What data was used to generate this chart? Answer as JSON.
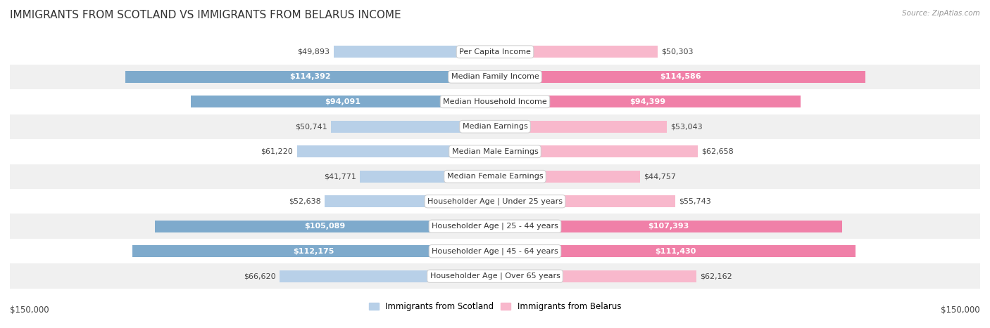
{
  "title": "IMMIGRANTS FROM SCOTLAND VS IMMIGRANTS FROM BELARUS INCOME",
  "source": "Source: ZipAtlas.com",
  "categories": [
    "Per Capita Income",
    "Median Family Income",
    "Median Household Income",
    "Median Earnings",
    "Median Male Earnings",
    "Median Female Earnings",
    "Householder Age | Under 25 years",
    "Householder Age | 25 - 44 years",
    "Householder Age | 45 - 64 years",
    "Householder Age | Over 65 years"
  ],
  "scotland_values": [
    49893,
    114392,
    94091,
    50741,
    61220,
    41771,
    52638,
    105089,
    112175,
    66620
  ],
  "belarus_values": [
    50303,
    114586,
    94399,
    53043,
    62658,
    44757,
    55743,
    107393,
    111430,
    62162
  ],
  "scotland_labels": [
    "$49,893",
    "$114,392",
    "$94,091",
    "$50,741",
    "$61,220",
    "$41,771",
    "$52,638",
    "$105,089",
    "$112,175",
    "$66,620"
  ],
  "belarus_labels": [
    "$50,303",
    "$114,586",
    "$94,399",
    "$53,043",
    "$62,658",
    "$44,757",
    "$55,743",
    "$107,393",
    "$111,430",
    "$62,162"
  ],
  "scotland_color": "#7eaacc",
  "belarus_color": "#f080a8",
  "scotland_color_light": "#b8d0e8",
  "belarus_color_light": "#f8b8cc",
  "label_threshold": 80000,
  "max_value": 150000,
  "bar_height": 0.48,
  "background_color": "#ffffff",
  "row_bg_even": "#f0f0f0",
  "row_bg_odd": "#ffffff",
  "legend_scotland": "Immigrants from Scotland",
  "legend_belarus": "Immigrants from Belarus",
  "xlabel_left": "$150,000",
  "xlabel_right": "$150,000",
  "title_fontsize": 11,
  "label_fontsize": 8,
  "cat_fontsize": 8
}
